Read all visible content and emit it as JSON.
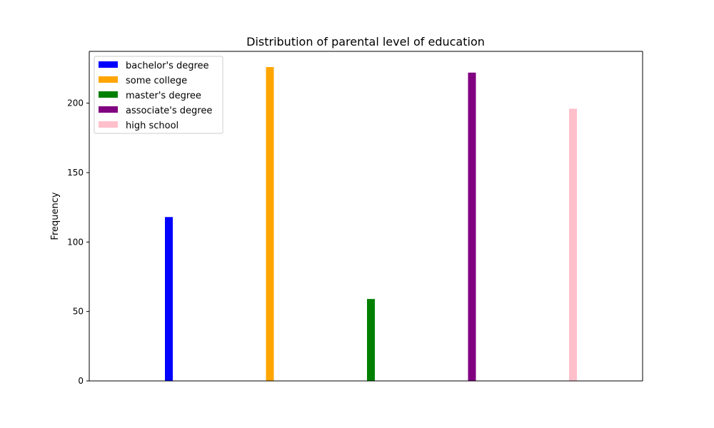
{
  "chart_data": {
    "type": "bar",
    "title": "Distribution of parental level of education",
    "xlabel": "",
    "ylabel": "Frequency",
    "ylim": [
      0,
      237.3
    ],
    "yticks": [
      0,
      50,
      100,
      150,
      200
    ],
    "grid": false,
    "legend_position": "top-left",
    "bar_series": [
      {
        "name": "bachelor's degree",
        "value": 118,
        "color": "#0000ff"
      },
      {
        "name": "some college",
        "value": 226,
        "color": "#ffa500"
      },
      {
        "name": "master's degree",
        "value": 59,
        "color": "#008000"
      },
      {
        "name": "associate's degree",
        "value": 222,
        "color": "#800080"
      },
      {
        "name": "high school",
        "value": 196,
        "color": "#ffc0cb"
      }
    ]
  }
}
